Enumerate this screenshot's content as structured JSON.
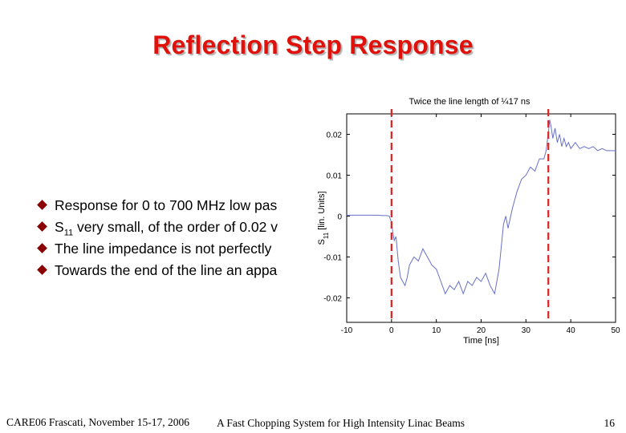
{
  "slide": {
    "title": "Reflection Step Response",
    "bullets": [
      {
        "pre": "Response for 0 to 700 MHz low pas",
        "sub": "",
        "post": ""
      },
      {
        "pre": "S",
        "sub": "11",
        "post": " very small, of the order of 0.02 v"
      },
      {
        "pre": "The line impedance is not perfectly",
        "sub": "",
        "post": ""
      },
      {
        "pre": "Towards the end of the line an appa",
        "sub": "",
        "post": ""
      }
    ],
    "footer": {
      "left": "CARE06 Frascati, November 15-17, 2006",
      "middle": "A Fast Chopping System for High Intensity Linac Beams",
      "page": "16"
    }
  },
  "chart_data": {
    "type": "line",
    "annotation": "Twice the line length of ¼17 ns",
    "xlabel": "Time [ns]",
    "ylabel_main": "S",
    "ylabel_sub": "11",
    "ylabel_rest": " [lin. Units]",
    "xlim": [
      -10,
      50
    ],
    "ylim": [
      -0.026,
      0.025
    ],
    "xticks": [
      -10,
      0,
      10,
      20,
      30,
      40,
      50
    ],
    "xtick_labels": [
      "-10",
      "0",
      "10",
      "20",
      "30",
      "40",
      "50"
    ],
    "yticks": [
      0.02,
      0.01,
      0,
      -0.01,
      -0.02
    ],
    "ytick_labels": [
      "0.02",
      "0.01",
      "0",
      "-0.01",
      "-0.02"
    ],
    "line_color": "#6670c8",
    "marker_color": "#e02020",
    "vertical_markers": [
      0,
      35
    ],
    "series": [
      {
        "x": [
          -10,
          -8,
          -6,
          -4,
          -3,
          -2,
          -1,
          -0.5,
          0,
          0.3,
          0.6,
          1,
          1.5,
          2,
          2.5,
          3,
          3.5,
          4,
          5,
          6,
          7,
          8,
          9,
          10,
          11,
          12,
          13,
          14,
          15,
          16,
          17,
          18,
          19,
          20,
          21,
          22,
          23,
          24,
          25,
          25.5,
          26,
          27,
          28,
          29,
          30,
          31,
          32,
          33,
          34,
          34.5,
          35,
          35.3,
          35.6,
          36,
          36.5,
          37,
          37.5,
          38,
          38.5,
          39,
          39.5,
          40,
          41,
          42,
          43,
          44,
          45,
          46,
          47,
          48,
          49,
          50
        ],
        "y": [
          0.0002,
          0.0002,
          0.0002,
          0.0002,
          0.0002,
          0.0001,
          0.0001,
          0.0,
          -0.0015,
          -0.004,
          -0.006,
          -0.005,
          -0.011,
          -0.015,
          -0.016,
          -0.017,
          -0.015,
          -0.012,
          -0.01,
          -0.011,
          -0.008,
          -0.01,
          -0.012,
          -0.013,
          -0.016,
          -0.019,
          -0.017,
          -0.018,
          -0.016,
          -0.019,
          -0.016,
          -0.017,
          -0.015,
          -0.016,
          -0.014,
          -0.017,
          -0.019,
          -0.013,
          -0.002,
          0.0,
          -0.003,
          0.002,
          0.006,
          0.009,
          0.01,
          0.012,
          0.011,
          0.014,
          0.014,
          0.016,
          0.0205,
          0.0235,
          0.022,
          0.019,
          0.0215,
          0.018,
          0.02,
          0.017,
          0.019,
          0.017,
          0.018,
          0.0165,
          0.018,
          0.0165,
          0.017,
          0.0165,
          0.017,
          0.016,
          0.0165,
          0.016,
          0.016,
          0.016
        ]
      }
    ]
  }
}
